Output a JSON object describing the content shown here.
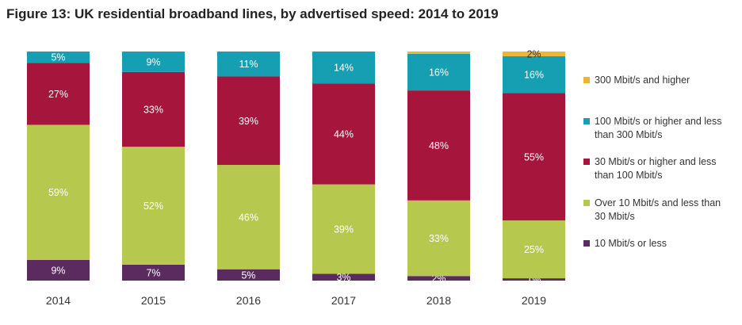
{
  "title": "Figure 13: UK residential broadband lines, by advertised speed: 2014 to 2019",
  "chart_data": {
    "type": "bar",
    "stacked": true,
    "normalized_percent": true,
    "categories": [
      "2014",
      "2015",
      "2016",
      "2017",
      "2018",
      "2019"
    ],
    "series": [
      {
        "name": "10 Mbit/s or less",
        "color": "#5b2a5f",
        "values": [
          9,
          7,
          5,
          3,
          2,
          1
        ],
        "labels": [
          "9%",
          "7%",
          "5%",
          "3%",
          "2%",
          "1%"
        ]
      },
      {
        "name": "Over 10 Mbit/s and less than 30 Mbit/s",
        "color": "#b6c94e",
        "values": [
          59,
          52,
          46,
          39,
          33,
          25
        ],
        "labels": [
          "59%",
          "52%",
          "46%",
          "39%",
          "33%",
          "25%"
        ]
      },
      {
        "name": "30 Mbit/s or higher and less than 100 Mbit/s",
        "color": "#a6163c",
        "values": [
          27,
          33,
          39,
          44,
          48,
          55
        ],
        "labels": [
          "27%",
          "33%",
          "39%",
          "44%",
          "48%",
          "55%"
        ]
      },
      {
        "name": "100 Mbit/s or higher and less than 300 Mbit/s",
        "color": "#169fb3",
        "values": [
          5,
          9,
          11,
          14,
          16,
          16
        ],
        "labels": [
          "5%",
          "9%",
          "11%",
          "14%",
          "16%",
          "16%"
        ]
      },
      {
        "name": "300 Mbit/s and higher",
        "color": "#f0b530",
        "values": [
          0,
          0,
          0,
          0,
          1,
          2
        ],
        "labels": [
          "",
          "",
          "",
          "",
          "",
          "2%"
        ]
      }
    ],
    "legend_position": "right",
    "grid": false
  }
}
